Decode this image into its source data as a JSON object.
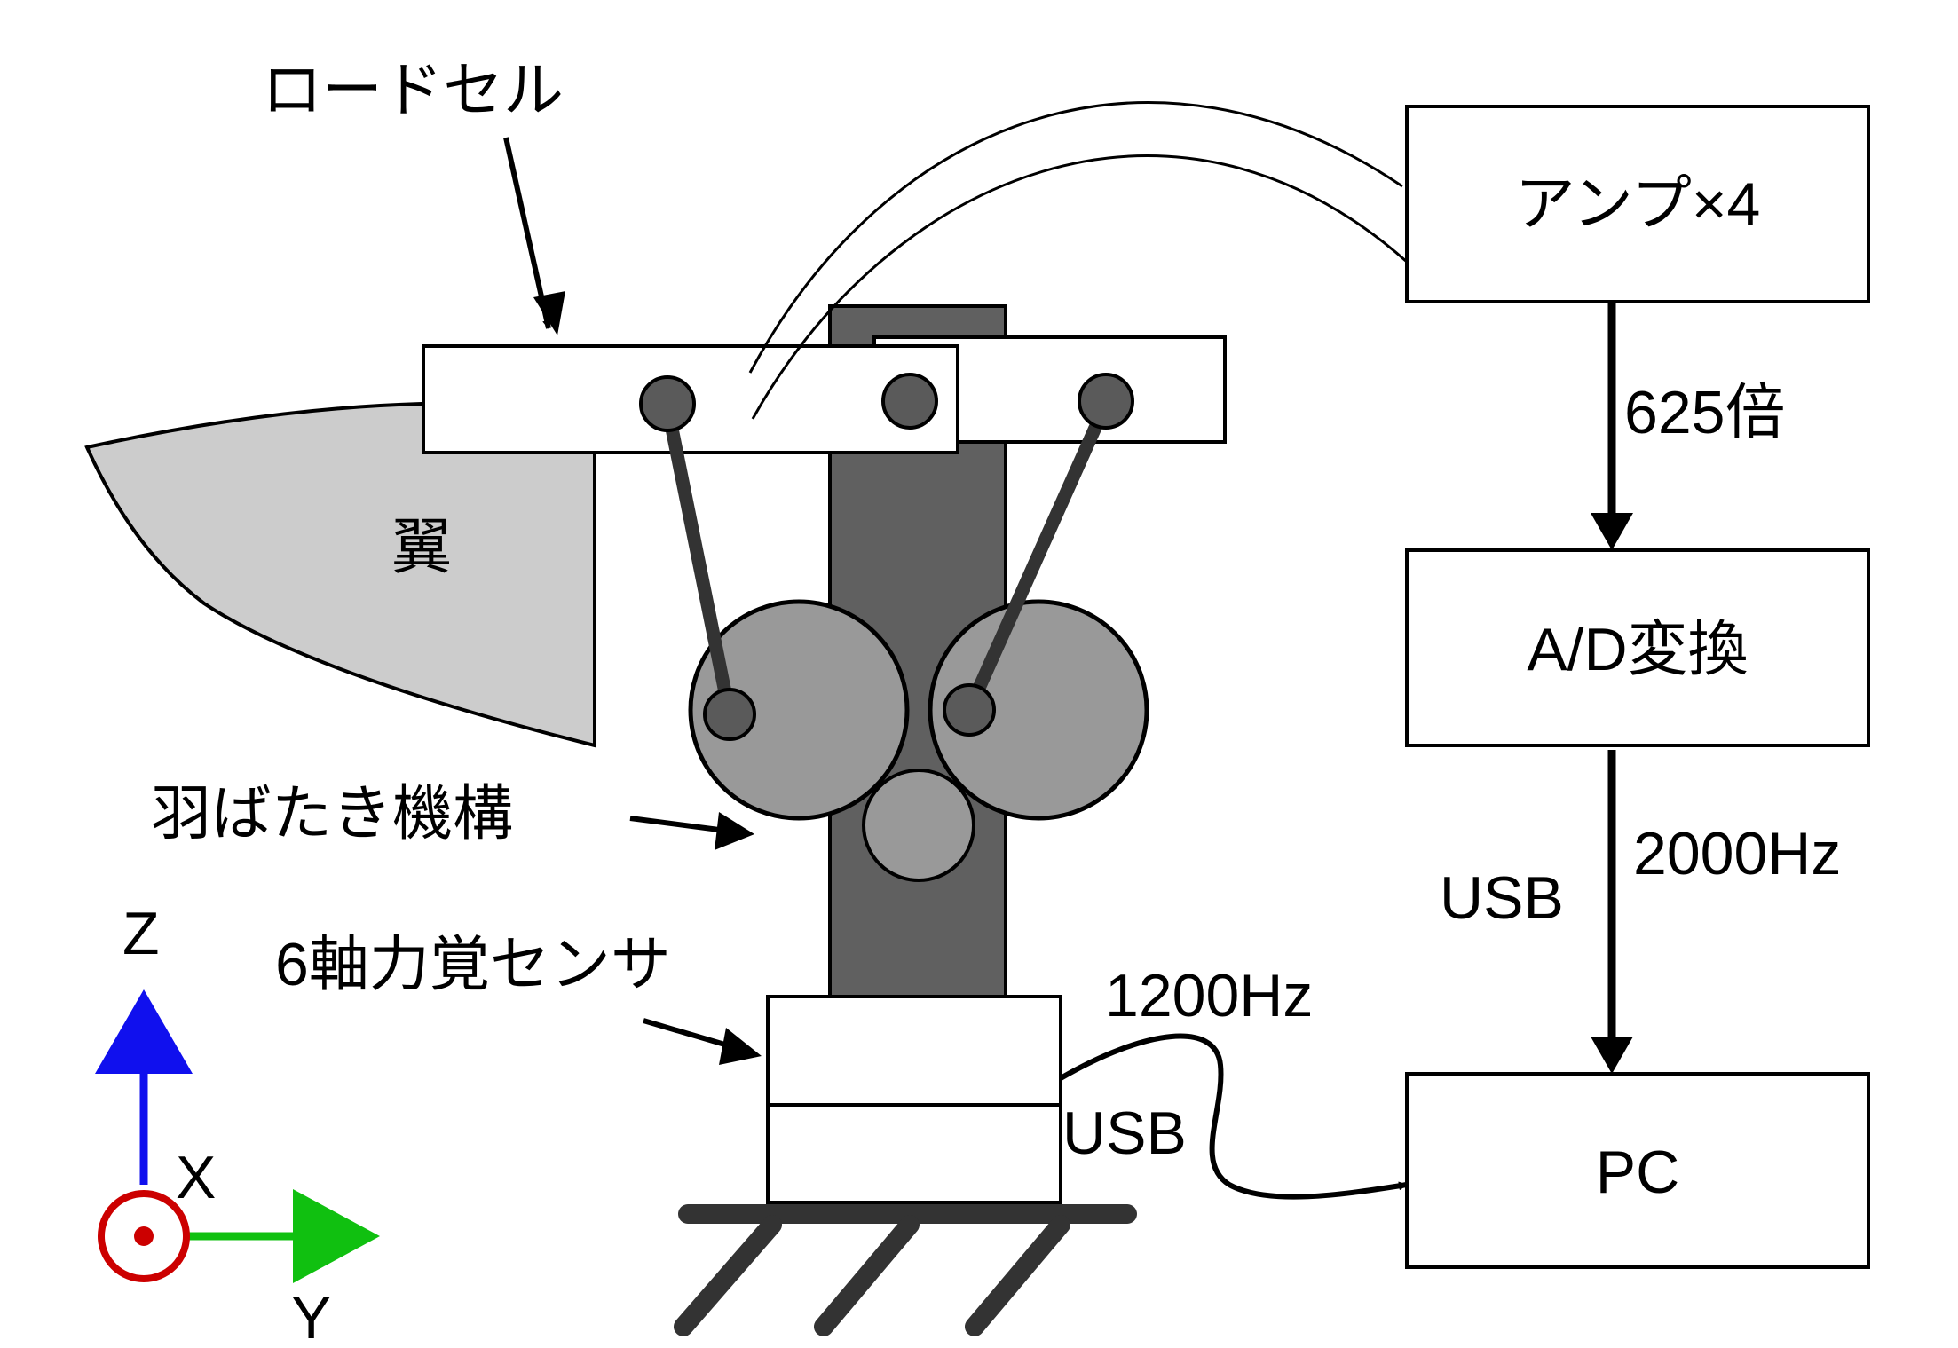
{
  "labels": {
    "load_cell": "ロードセル",
    "wing": "翼",
    "flapping_mechanism": "羽ばたき機構",
    "force_sensor": "6軸力覚センサ",
    "sensor_rate": "1200Hz",
    "sensor_usb": "USB",
    "adc_rate": "2000Hz",
    "adc_usb": "USB",
    "gain": "625倍"
  },
  "blocks": {
    "amp": "アンプ×4",
    "adc": "A/D変換",
    "pc": "PC"
  },
  "axes": {
    "z": "Z",
    "x": "X",
    "y": "Y"
  },
  "colors": {
    "z_axis": "#1010ee",
    "y_axis": "#10c010",
    "x_axis": "#cc0000",
    "tower": "#606060",
    "gear": "#999999",
    "wing": "#cccccc",
    "pivot": "#5a5a5a",
    "rod": "#333333"
  }
}
